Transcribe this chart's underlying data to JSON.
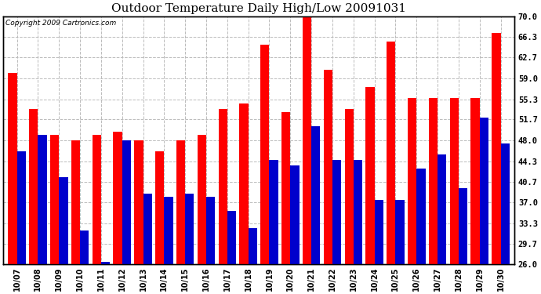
{
  "title": "Outdoor Temperature Daily High/Low 20091031",
  "copyright_text": "Copyright 2009 Cartronics.com",
  "dates": [
    "10/07",
    "10/08",
    "10/09",
    "10/10",
    "10/11",
    "10/12",
    "10/13",
    "10/14",
    "10/15",
    "10/16",
    "10/17",
    "10/18",
    "10/19",
    "10/20",
    "10/21",
    "10/22",
    "10/23",
    "10/24",
    "10/25",
    "10/26",
    "10/27",
    "10/28",
    "10/29",
    "10/30"
  ],
  "highs": [
    60.0,
    53.5,
    49.0,
    48.0,
    49.0,
    49.5,
    48.0,
    46.0,
    48.0,
    49.0,
    53.5,
    54.5,
    65.0,
    53.0,
    70.5,
    60.5,
    53.5,
    57.5,
    65.5,
    55.5,
    55.5,
    55.5,
    55.5,
    67.0
  ],
  "lows": [
    46.0,
    49.0,
    41.5,
    32.0,
    26.5,
    48.0,
    38.5,
    38.0,
    38.5,
    38.0,
    35.5,
    32.5,
    44.5,
    43.5,
    50.5,
    44.5,
    44.5,
    37.5,
    37.5,
    43.0,
    45.5,
    39.5,
    52.0,
    47.5
  ],
  "ylim": [
    26.0,
    70.0
  ],
  "yticks": [
    26.0,
    29.7,
    33.3,
    37.0,
    40.7,
    44.3,
    48.0,
    51.7,
    55.3,
    59.0,
    62.7,
    66.3,
    70.0
  ],
  "high_color": "#ff0000",
  "low_color": "#0000cc",
  "bg_color": "#ffffff",
  "bar_width": 0.42,
  "title_fontsize": 11,
  "tick_fontsize": 7,
  "ylabel_right_fontsize": 7.5
}
